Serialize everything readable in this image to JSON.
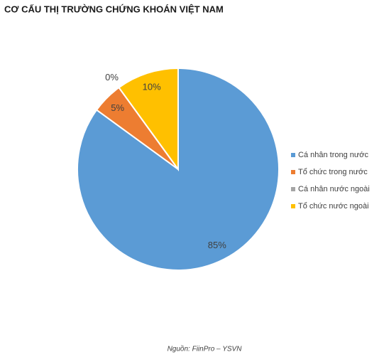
{
  "chart_data": {
    "type": "pie",
    "title": "CƠ CẤU THỊ TRƯỜNG CHỨNG KHOÁN VIỆT NAM",
    "categories": [
      "Cá nhân trong nước",
      "Tổ chức trong nước",
      "Cá nhân nước ngoài",
      "Tổ chức nước ngoài"
    ],
    "values": [
      85,
      5,
      0,
      10
    ],
    "value_labels": [
      "85%",
      "5%",
      "0%",
      "10%"
    ],
    "colors": [
      "#5b9bd5",
      "#ed7d31",
      "#a5a5a5",
      "#ffc000"
    ],
    "legend": "right",
    "source": "Nguồn: FiinPro – YSVN"
  }
}
